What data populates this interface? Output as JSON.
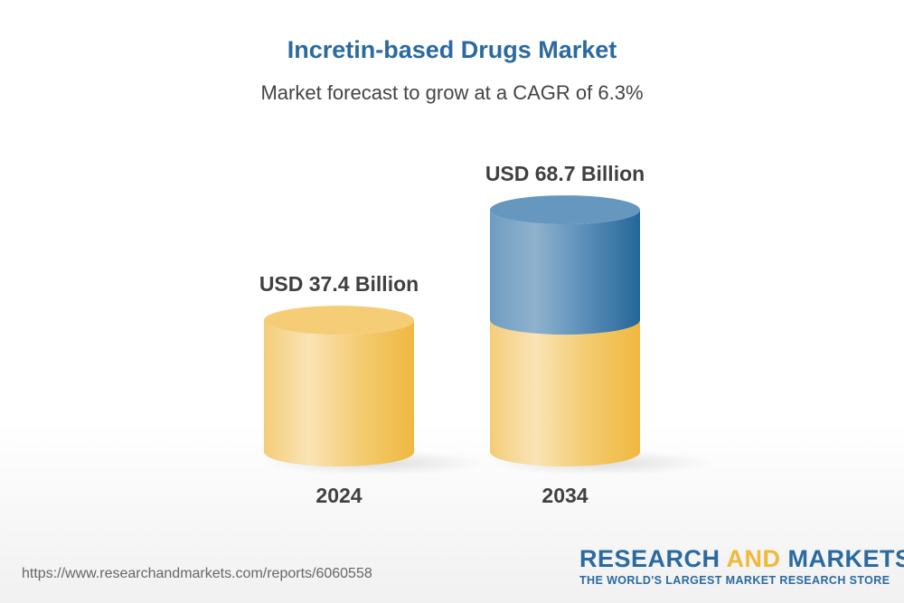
{
  "chart_data": {
    "type": "bar",
    "style": "3d-cylinder",
    "title": "Incretin-based Drugs Market",
    "subtitle": "Market forecast to grow at a CAGR of 6.3%",
    "categories": [
      "2024",
      "2034"
    ],
    "values": [
      37.4,
      68.7
    ],
    "unit": "USD Billion",
    "data_labels": [
      "USD 37.4 Billion",
      "USD 68.7 Billion"
    ],
    "grid": false,
    "colors": {
      "base": "#f3c65c",
      "growth": "#3a78a8"
    }
  },
  "footer": {
    "url": "https://www.researchandmarkets.com/reports/6060558",
    "logo_part1": "RESEARCH ",
    "logo_part2": "AND",
    "logo_part3": " MARKETS",
    "tagline": "THE WORLD'S LARGEST MARKET RESEARCH STORE"
  }
}
